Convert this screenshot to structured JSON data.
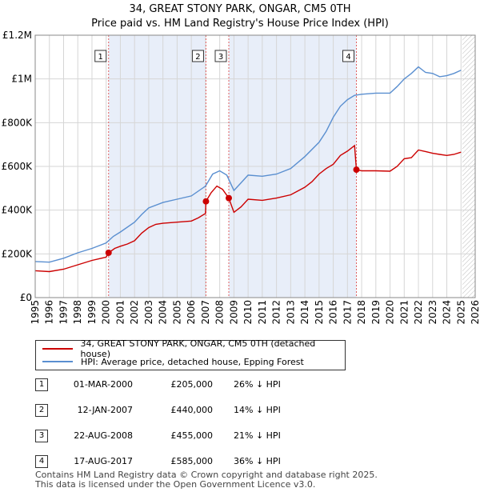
{
  "title_line1": "34, GREAT STONY PARK, ONGAR, CM5 0TH",
  "title_line2": "Price paid vs. HM Land Registry's House Price Index (HPI)",
  "colors": {
    "price_line": "#cc0000",
    "hpi_line": "#5a8fd0",
    "shade": "#e8eef9",
    "grid": "#d6d6d6",
    "marker_border": "#333333"
  },
  "chart_data": {
    "type": "line",
    "xlim": [
      1995,
      2026
    ],
    "ylim": [
      0,
      1200000
    ],
    "x_ticks": [
      "1995",
      "1996",
      "1997",
      "1998",
      "1999",
      "2000",
      "2001",
      "2002",
      "2003",
      "2004",
      "2005",
      "2006",
      "2007",
      "2008",
      "2009",
      "2010",
      "2011",
      "2012",
      "2013",
      "2014",
      "2015",
      "2016",
      "2017",
      "2018",
      "2019",
      "2020",
      "2021",
      "2022",
      "2023",
      "2024",
      "2025",
      "2026"
    ],
    "y_ticks": [
      {
        "value": 0,
        "label": "£0"
      },
      {
        "value": 200000,
        "label": "£200K"
      },
      {
        "value": 400000,
        "label": "£400K"
      },
      {
        "value": 600000,
        "label": "£600K"
      },
      {
        "value": 800000,
        "label": "£800K"
      },
      {
        "value": 1000000,
        "label": "£1M"
      },
      {
        "value": 1200000,
        "label": "£1.2M"
      }
    ],
    "shaded_ranges": [
      [
        2000.17,
        2007.03
      ],
      [
        2008.64,
        2017.63
      ]
    ],
    "data_end_year": 2025.1,
    "series": [
      {
        "name": "34, GREAT STONY PARK, ONGAR, CM5 0TH (detached house)",
        "points": [
          [
            1995.0,
            123000
          ],
          [
            1996.0,
            119000
          ],
          [
            1997.0,
            130000
          ],
          [
            1998.0,
            150000
          ],
          [
            1999.0,
            170000
          ],
          [
            2000.0,
            185000
          ],
          [
            2000.17,
            205000
          ],
          [
            2000.6,
            225000
          ],
          [
            2001.0,
            235000
          ],
          [
            2001.5,
            245000
          ],
          [
            2002.0,
            260000
          ],
          [
            2002.5,
            295000
          ],
          [
            2003.0,
            320000
          ],
          [
            2003.5,
            335000
          ],
          [
            2004.0,
            340000
          ],
          [
            2005.0,
            345000
          ],
          [
            2006.0,
            350000
          ],
          [
            2006.5,
            365000
          ],
          [
            2007.0,
            385000
          ],
          [
            2007.03,
            440000
          ],
          [
            2007.4,
            480000
          ],
          [
            2007.8,
            510000
          ],
          [
            2008.2,
            495000
          ],
          [
            2008.64,
            455000
          ],
          [
            2009.0,
            390000
          ],
          [
            2009.5,
            415000
          ],
          [
            2010.0,
            450000
          ],
          [
            2011.0,
            445000
          ],
          [
            2012.0,
            455000
          ],
          [
            2013.0,
            470000
          ],
          [
            2014.0,
            505000
          ],
          [
            2014.5,
            530000
          ],
          [
            2015.0,
            565000
          ],
          [
            2015.5,
            590000
          ],
          [
            2016.0,
            610000
          ],
          [
            2016.5,
            650000
          ],
          [
            2017.0,
            670000
          ],
          [
            2017.5,
            695000
          ],
          [
            2017.63,
            585000
          ],
          [
            2018.0,
            580000
          ],
          [
            2019.0,
            580000
          ],
          [
            2020.0,
            578000
          ],
          [
            2020.5,
            600000
          ],
          [
            2021.0,
            635000
          ],
          [
            2021.5,
            640000
          ],
          [
            2022.0,
            675000
          ],
          [
            2022.5,
            668000
          ],
          [
            2023.0,
            660000
          ],
          [
            2023.5,
            655000
          ],
          [
            2024.0,
            650000
          ],
          [
            2024.5,
            655000
          ],
          [
            2025.0,
            665000
          ]
        ]
      },
      {
        "name": "HPI: Average price, detached house, Epping Forest",
        "points": [
          [
            1995.0,
            165000
          ],
          [
            1996.0,
            162000
          ],
          [
            1997.0,
            180000
          ],
          [
            1998.0,
            205000
          ],
          [
            1999.0,
            225000
          ],
          [
            2000.0,
            250000
          ],
          [
            2000.5,
            280000
          ],
          [
            2001.0,
            300000
          ],
          [
            2002.0,
            345000
          ],
          [
            2002.5,
            380000
          ],
          [
            2003.0,
            410000
          ],
          [
            2004.0,
            435000
          ],
          [
            2005.0,
            450000
          ],
          [
            2006.0,
            465000
          ],
          [
            2007.0,
            510000
          ],
          [
            2007.5,
            565000
          ],
          [
            2008.0,
            580000
          ],
          [
            2008.5,
            560000
          ],
          [
            2009.0,
            490000
          ],
          [
            2009.5,
            525000
          ],
          [
            2010.0,
            560000
          ],
          [
            2011.0,
            555000
          ],
          [
            2012.0,
            565000
          ],
          [
            2013.0,
            590000
          ],
          [
            2014.0,
            645000
          ],
          [
            2015.0,
            710000
          ],
          [
            2015.5,
            760000
          ],
          [
            2016.0,
            825000
          ],
          [
            2016.5,
            875000
          ],
          [
            2017.0,
            905000
          ],
          [
            2017.5,
            925000
          ],
          [
            2018.0,
            930000
          ],
          [
            2019.0,
            935000
          ],
          [
            2020.0,
            935000
          ],
          [
            2020.5,
            965000
          ],
          [
            2021.0,
            1000000
          ],
          [
            2021.5,
            1025000
          ],
          [
            2022.0,
            1055000
          ],
          [
            2022.5,
            1030000
          ],
          [
            2023.0,
            1025000
          ],
          [
            2023.5,
            1010000
          ],
          [
            2024.0,
            1015000
          ],
          [
            2024.5,
            1025000
          ],
          [
            2025.0,
            1040000
          ]
        ]
      }
    ],
    "sales": [
      {
        "num": "1",
        "year": 2000.17,
        "price": 205000
      },
      {
        "num": "2",
        "year": 2007.03,
        "price": 440000
      },
      {
        "num": "3",
        "year": 2008.64,
        "price": 455000
      },
      {
        "num": "4",
        "year": 2017.63,
        "price": 585000
      }
    ]
  },
  "legend": {
    "price_label": "34, GREAT STONY PARK, ONGAR, CM5 0TH (detached house)",
    "hpi_label": "HPI: Average price, detached house, Epping Forest"
  },
  "transactions": [
    {
      "num": "1",
      "date": "01-MAR-2000",
      "price": "£205,000",
      "hpi": "26% ↓ HPI"
    },
    {
      "num": "2",
      "date": "12-JAN-2007",
      "price": "£440,000",
      "hpi": "14% ↓ HPI"
    },
    {
      "num": "3",
      "date": "22-AUG-2008",
      "price": "£455,000",
      "hpi": "21% ↓ HPI"
    },
    {
      "num": "4",
      "date": "17-AUG-2017",
      "price": "£585,000",
      "hpi": "36% ↓ HPI"
    }
  ],
  "footer": {
    "line1": "Contains HM Land Registry data © Crown copyright and database right 2025.",
    "line2": "This data is licensed under the Open Government Licence v3.0."
  }
}
